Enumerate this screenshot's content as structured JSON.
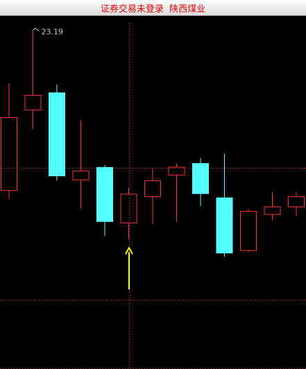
{
  "window": {
    "title": "证券交易未登录  陕西煤业"
  },
  "chart_data": {
    "type": "candlestick",
    "title": "",
    "xlabel": "",
    "ylabel": "",
    "ylim": [
      15.2,
      23.7
    ],
    "grid": false,
    "colors": {
      "up": "#ff3232",
      "down": "#54ffff",
      "marker": "#ffff00",
      "crosshair": "#ff2a2a"
    },
    "peak_label": "23.19",
    "candles": [
      {
        "open": 17.5,
        "close": 20.09,
        "high": 21.31,
        "low": 17.19
      },
      {
        "open": 20.36,
        "close": 20.88,
        "high": 23.19,
        "low": 19.7
      },
      {
        "open": 20.97,
        "close": 18.02,
        "high": 21.26,
        "low": 17.85
      },
      {
        "open": 17.88,
        "close": 18.19,
        "high": 19.99,
        "low": 16.86
      },
      {
        "open": 18.32,
        "close": 16.4,
        "high": 18.4,
        "low": 15.89
      },
      {
        "open": 16.35,
        "close": 17.37,
        "high": 17.6,
        "low": 15.76
      },
      {
        "open": 17.28,
        "close": 17.85,
        "high": 18.28,
        "low": 16.31
      },
      {
        "open": 18.05,
        "close": 18.33,
        "high": 18.45,
        "low": 16.4
      },
      {
        "open": 18.46,
        "close": 17.39,
        "high": 18.65,
        "low": 16.94
      },
      {
        "open": 17.24,
        "close": 15.28,
        "high": 18.81,
        "low": 15.15
      },
      {
        "open": 15.37,
        "close": 16.76,
        "high": 16.84,
        "low": 15.32
      },
      {
        "open": 16.65,
        "close": 16.92,
        "high": 17.44,
        "low": 16.44
      },
      {
        "open": 16.92,
        "close": 17.28,
        "high": 17.45,
        "low": 16.58
      }
    ],
    "marker_candle_index": 5
  }
}
